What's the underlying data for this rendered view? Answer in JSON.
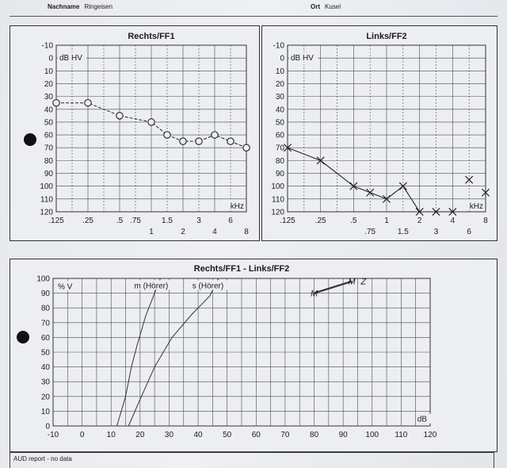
{
  "header": {
    "name_label": "Nachname",
    "name_value": "Ringeisen",
    "place_label": "Ort",
    "place_value": "Kusel"
  },
  "footer": {
    "text": "AUD report - no data"
  },
  "chart_data": [
    {
      "type": "line",
      "title": "Rechts/FF1",
      "ylabel": "dB HV",
      "xlabel": "kHz",
      "ylim": [
        -10,
        120
      ],
      "y_inverted": true,
      "y_ticks": [
        -10,
        0,
        10,
        20,
        30,
        40,
        50,
        60,
        70,
        80,
        90,
        100,
        110,
        120
      ],
      "x_tick_labels_top": [
        ".125",
        ".25",
        ".5",
        ".75",
        "1.5",
        "3",
        "6"
      ],
      "x_tick_labels_bottom": [
        "1",
        "2",
        "4",
        "8"
      ],
      "frequencies_khz": [
        0.125,
        0.25,
        0.5,
        1,
        1.5,
        2,
        3,
        4,
        6,
        8
      ],
      "marker": "circle",
      "line_style": "dashed",
      "series": [
        {
          "values": [
            35,
            35,
            45,
            50,
            60,
            65,
            65,
            60,
            65,
            70
          ]
        }
      ]
    },
    {
      "type": "line",
      "title": "Links/FF2",
      "ylabel": "dB HV",
      "xlabel": "kHz",
      "ylim": [
        -10,
        120
      ],
      "y_inverted": true,
      "y_ticks": [
        -10,
        0,
        10,
        20,
        30,
        40,
        50,
        60,
        70,
        80,
        90,
        100,
        110,
        120
      ],
      "x_tick_labels_top": [
        ".125",
        ".25",
        ".5",
        "1",
        "2",
        "4",
        "8"
      ],
      "x_tick_labels_bottom": [
        ".75",
        "1.5",
        "3",
        "6"
      ],
      "frequencies_khz": [
        0.125,
        0.25,
        0.5,
        0.75,
        1,
        1.5,
        2,
        3,
        4,
        6,
        8
      ],
      "marker": "x",
      "line_style": "solid",
      "series": [
        {
          "values": [
            70,
            80,
            100,
            105,
            110,
            100,
            120,
            120,
            120,
            95,
            105
          ]
        }
      ]
    },
    {
      "type": "line",
      "title": "Rechts/FF1 - Links/FF2",
      "ylabel": "% V",
      "xlabel": "dB",
      "xlim": [
        -10,
        120
      ],
      "ylim": [
        0,
        100
      ],
      "x_ticks": [
        -10,
        0,
        10,
        20,
        30,
        40,
        50,
        60,
        70,
        80,
        90,
        100,
        110,
        120
      ],
      "y_ticks": [
        0,
        10,
        20,
        30,
        40,
        50,
        60,
        70,
        80,
        90,
        100
      ],
      "series": [
        {
          "name": "m (Hörer)",
          "points": [
            [
              12,
              0
            ],
            [
              15,
              20
            ],
            [
              17,
              40
            ],
            [
              19,
              55
            ],
            [
              22,
              75
            ],
            [
              25,
              90
            ],
            [
              27,
              100
            ]
          ]
        },
        {
          "name": "s (Hörer)",
          "points": [
            [
              16,
              0
            ],
            [
              20,
              18
            ],
            [
              25,
              40
            ],
            [
              31,
              60
            ],
            [
              38,
              76
            ],
            [
              44,
              88
            ],
            [
              47,
              100
            ]
          ]
        }
      ],
      "annotations": [
        {
          "text": "M",
          "x": 80,
          "y": 90
        },
        {
          "text": "M",
          "x": 93,
          "y": 98
        },
        {
          "text": "Z",
          "x": 97,
          "y": 98
        }
      ]
    }
  ]
}
